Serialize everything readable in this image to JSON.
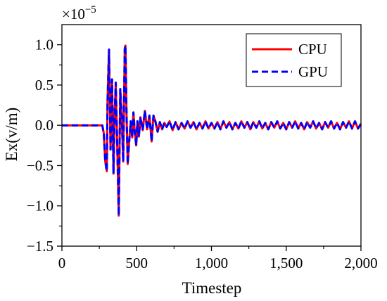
{
  "chart_data": {
    "type": "line",
    "xlabel": "Timestep",
    "ylabel": "Ex(v/m)",
    "multiplier_label": "×10",
    "multiplier_exponent": "−5",
    "xlim": [
      0,
      2000
    ],
    "ylim": [
      -1.5,
      1.25
    ],
    "x_ticks": [
      0,
      500,
      1000,
      1500,
      2000
    ],
    "x_tick_labels": [
      "0",
      "500",
      "1,000",
      "1,500",
      "2,000"
    ],
    "y_ticks": [
      -1.5,
      -1.0,
      -0.5,
      0.0,
      0.5,
      1.0
    ],
    "y_tick_labels": [
      "−1.5",
      "−1.0",
      "−0.5",
      "0.0",
      "0.5",
      "1.0"
    ],
    "grid": false,
    "legend_position": "top-right",
    "series": [
      {
        "name": "CPU",
        "color": "#ff0000",
        "dash": "solid",
        "x": [
          0,
          270,
          280,
          290,
          300,
          305,
          315,
          325,
          335,
          345,
          352,
          360,
          370,
          380,
          390,
          400,
          410,
          420,
          425,
          432,
          440,
          450,
          460,
          470,
          478,
          487,
          497,
          505,
          515,
          525,
          540,
          555,
          570,
          585,
          600,
          612,
          625,
          640,
          655,
          670,
          685,
          700,
          720,
          740,
          760,
          780,
          800,
          820,
          840,
          860,
          880,
          900,
          920,
          940,
          960,
          980,
          1000,
          1020,
          1040,
          1060,
          1080,
          1100,
          1120,
          1140,
          1160,
          1180,
          1200,
          1220,
          1240,
          1260,
          1280,
          1300,
          1320,
          1340,
          1360,
          1380,
          1400,
          1420,
          1440,
          1460,
          1480,
          1500,
          1520,
          1540,
          1560,
          1580,
          1600,
          1620,
          1640,
          1660,
          1680,
          1700,
          1720,
          1740,
          1760,
          1780,
          1800,
          1820,
          1840,
          1860,
          1880,
          1900,
          1920,
          1940,
          1960,
          1980,
          2000
        ],
        "y": [
          0,
          0,
          -0.1,
          -0.45,
          -0.57,
          0.3,
          0.94,
          -0.3,
          0.57,
          -0.6,
          0.1,
          0.53,
          -0.25,
          -1.12,
          0.45,
          0.1,
          -0.45,
          0.95,
          0.99,
          0.15,
          -0.48,
          -0.2,
          0.05,
          -0.15,
          0.16,
          -0.08,
          -0.25,
          0.05,
          -0.14,
          0.1,
          -0.06,
          0.18,
          -0.05,
          0.12,
          -0.2,
          0.12,
          0.05,
          -0.08,
          0.04,
          -0.05,
          0.03,
          -0.02,
          0.05,
          -0.06,
          0.04,
          -0.05,
          0.03,
          -0.04,
          0.05,
          -0.03,
          0.04,
          -0.05,
          0.03,
          -0.04,
          0.05,
          -0.04,
          0.03,
          -0.04,
          0.04,
          -0.05,
          0.05,
          -0.03,
          0.04,
          -0.05,
          0.03,
          -0.04,
          0.05,
          -0.03,
          0.04,
          -0.05,
          0.04,
          -0.03,
          0.05,
          -0.04,
          0.03,
          -0.05,
          0.04,
          -0.03,
          0.05,
          -0.04,
          0.03,
          -0.05,
          0.04,
          -0.03,
          0.05,
          -0.04,
          0.03,
          -0.05,
          0.04,
          -0.03,
          0.05,
          -0.04,
          0.03,
          -0.05,
          0.04,
          -0.03,
          0.05,
          -0.04,
          0.03,
          -0.05,
          0.04,
          -0.03,
          0.05,
          -0.04,
          0.05,
          -0.04,
          0.02
        ]
      },
      {
        "name": "GPU",
        "color": "#0000ff",
        "dash": "dashed",
        "x": [
          0,
          270,
          280,
          290,
          300,
          305,
          315,
          325,
          335,
          345,
          352,
          360,
          370,
          380,
          390,
          400,
          410,
          420,
          425,
          432,
          440,
          450,
          460,
          470,
          478,
          487,
          497,
          505,
          515,
          525,
          540,
          555,
          570,
          585,
          600,
          612,
          625,
          640,
          655,
          670,
          685,
          700,
          720,
          740,
          760,
          780,
          800,
          820,
          840,
          860,
          880,
          900,
          920,
          940,
          960,
          980,
          1000,
          1020,
          1040,
          1060,
          1080,
          1100,
          1120,
          1140,
          1160,
          1180,
          1200,
          1220,
          1240,
          1260,
          1280,
          1300,
          1320,
          1340,
          1360,
          1380,
          1400,
          1420,
          1440,
          1460,
          1480,
          1500,
          1520,
          1540,
          1560,
          1580,
          1600,
          1620,
          1640,
          1660,
          1680,
          1700,
          1720,
          1740,
          1760,
          1780,
          1800,
          1820,
          1840,
          1860,
          1880,
          1900,
          1920,
          1940,
          1960,
          1980,
          2000
        ],
        "y": [
          0,
          0,
          -0.1,
          -0.45,
          -0.57,
          0.3,
          0.94,
          -0.3,
          0.57,
          -0.6,
          0.1,
          0.53,
          -0.25,
          -1.12,
          0.45,
          0.1,
          -0.45,
          0.95,
          0.99,
          0.15,
          -0.48,
          -0.2,
          0.05,
          -0.15,
          0.16,
          -0.08,
          -0.25,
          0.05,
          -0.14,
          0.1,
          -0.06,
          0.18,
          -0.05,
          0.12,
          -0.2,
          0.12,
          0.05,
          -0.08,
          0.04,
          -0.05,
          0.03,
          -0.02,
          0.05,
          -0.06,
          0.04,
          -0.05,
          0.03,
          -0.04,
          0.05,
          -0.03,
          0.04,
          -0.05,
          0.03,
          -0.04,
          0.05,
          -0.04,
          0.03,
          -0.04,
          0.04,
          -0.05,
          0.05,
          -0.03,
          0.04,
          -0.05,
          0.03,
          -0.04,
          0.05,
          -0.03,
          0.04,
          -0.05,
          0.04,
          -0.03,
          0.05,
          -0.04,
          0.03,
          -0.05,
          0.04,
          -0.03,
          0.05,
          -0.04,
          0.03,
          -0.05,
          0.04,
          -0.03,
          0.05,
          -0.04,
          0.03,
          -0.05,
          0.04,
          -0.03,
          0.05,
          -0.04,
          0.03,
          -0.05,
          0.04,
          -0.03,
          0.05,
          -0.04,
          0.03,
          -0.05,
          0.04,
          -0.03,
          0.05,
          -0.04,
          0.05,
          -0.04,
          0.02
        ]
      }
    ]
  }
}
